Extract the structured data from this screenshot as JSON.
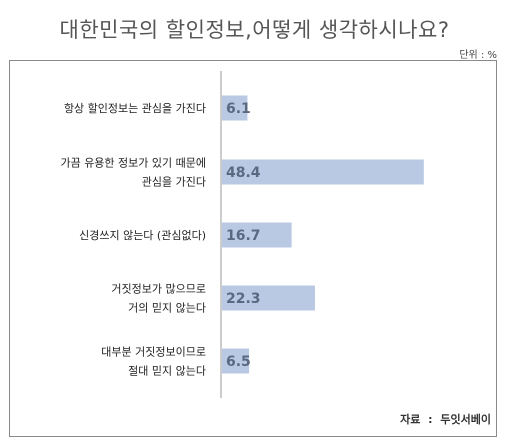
{
  "chart_data": {
    "type": "bar",
    "orientation": "horizontal",
    "title": "대한민국의 할인정보,어떻게 생각하시나요?",
    "unit": "단위 : %",
    "source": "자료 : 두잇서베이",
    "categories": [
      [
        "항상 할인정보는 관심을 가진다"
      ],
      [
        "가끔 유용한 정보가 있기 때문에",
        "관심을 가진다"
      ],
      [
        "신경쓰지 않는다 (관심없다)"
      ],
      [
        "거짓정보가 많으므로",
        "거의 믿지 않는다"
      ],
      [
        "대부분 거짓정보이므로",
        "절대 믿지 않는다"
      ]
    ],
    "values": [
      6.1,
      48.4,
      16.7,
      22.3,
      6.5
    ],
    "value_labels": [
      "6.1",
      "48.4",
      "16.7",
      "22.3",
      "6.5"
    ],
    "xlim": [
      0,
      100
    ],
    "grid": false,
    "bar_color": "#b9c9e4",
    "label_color": "#5a6880"
  }
}
